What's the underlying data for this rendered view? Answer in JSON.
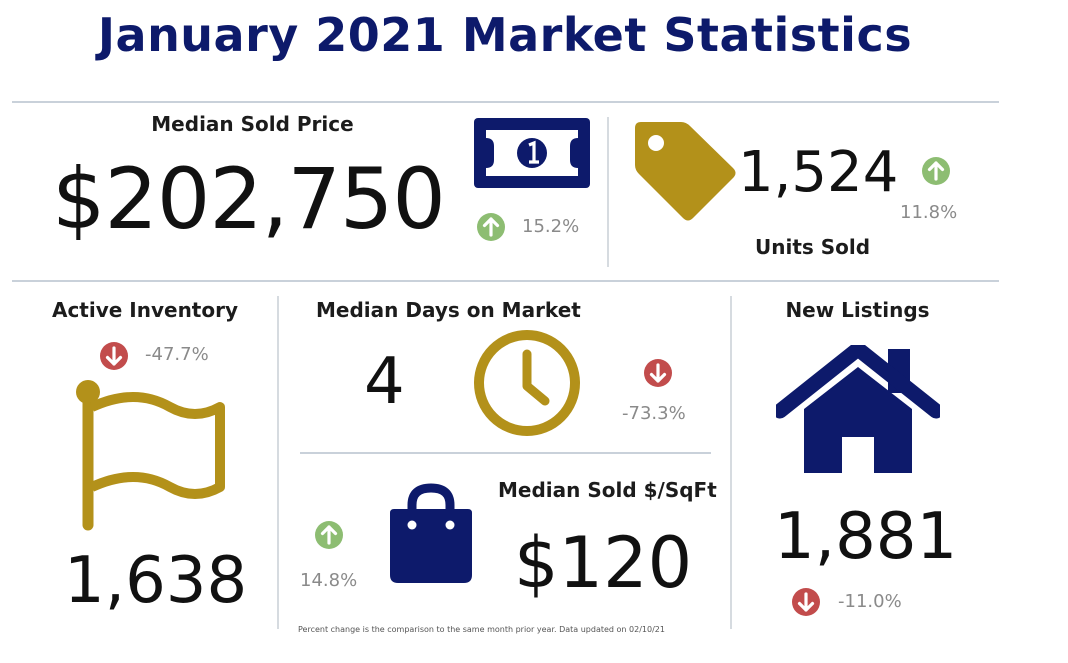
{
  "title": "January 2021 Market Statistics",
  "colors": {
    "navy": "#0d1a6b",
    "gold": "#b3911a",
    "up_green": "#8dbd72",
    "down_red": "#c24c4c",
    "divider": "#c9d1da"
  },
  "median_sold_price": {
    "label": "Median Sold Price",
    "value": "$202,750",
    "change": "15.2%",
    "direction": "up",
    "icon": "dollar-bill-icon"
  },
  "units_sold": {
    "label": "Units Sold",
    "value": "1,524",
    "change": "11.8%",
    "direction": "up",
    "icon": "price-tag-icon"
  },
  "active_inventory": {
    "label": "Active Inventory",
    "value": "1,638",
    "change": "-47.7%",
    "direction": "down",
    "icon": "flag-icon"
  },
  "median_days_on_market": {
    "label": "Median Days on Market",
    "value": "4",
    "change": "-73.3%",
    "direction": "down",
    "icon": "clock-icon"
  },
  "median_sold_per_sqft": {
    "label": "Median Sold $/SqFt",
    "value": "$120",
    "change": "14.8%",
    "direction": "up",
    "icon": "shopping-bag-icon"
  },
  "new_listings": {
    "label": "New Listings",
    "value": "1,881",
    "change": "-11.0%",
    "direction": "down",
    "icon": "house-icon"
  },
  "footnote": "Percent change is the comparison to the same month prior year. Data updated on 02/10/21"
}
